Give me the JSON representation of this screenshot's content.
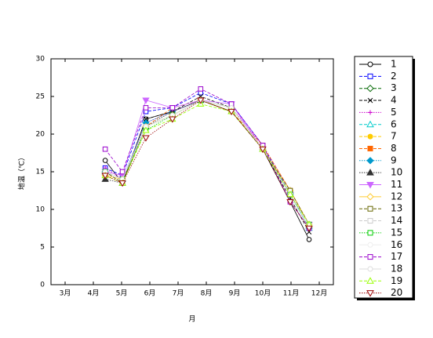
{
  "chart_data": {
    "type": "line",
    "x_label": "月",
    "y_label": "地温（℃）",
    "xlim": [
      3,
      13
    ],
    "xticks": [
      {
        "value": 3.5,
        "label": "3月"
      },
      {
        "value": 4.5,
        "label": "4月"
      },
      {
        "value": 5.5,
        "label": "5月"
      },
      {
        "value": 6.5,
        "label": "6月"
      },
      {
        "value": 7.5,
        "label": "7月"
      },
      {
        "value": 8.5,
        "label": "8月"
      },
      {
        "value": 9.5,
        "label": "9月"
      },
      {
        "value": 10.5,
        "label": "10月"
      },
      {
        "value": 11.5,
        "label": "11月"
      },
      {
        "value": 12.5,
        "label": "12月"
      }
    ],
    "ylim": [
      0,
      30
    ],
    "yticks": [
      0,
      5,
      10,
      15,
      20,
      25,
      30
    ],
    "x": [
      4.92,
      5.53,
      6.36,
      7.3,
      8.3,
      9.39,
      10.5,
      11.47,
      12.14
    ],
    "series": [
      {
        "name": "1",
        "color": "#000000",
        "marker": "o",
        "filled": false,
        "dash": "solid",
        "values": [
          16.5,
          13.5,
          22,
          23,
          24.5,
          23,
          18,
          11,
          6
        ]
      },
      {
        "name": "2",
        "color": "#0000ff",
        "marker": "s",
        "filled": false,
        "dash": "dashed",
        "values": [
          15.5,
          14.5,
          23,
          23.5,
          25.5,
          24,
          18.5,
          12,
          8
        ]
      },
      {
        "name": "3",
        "color": "#006600",
        "marker": "d",
        "filled": false,
        "dash": "dashed",
        "values": [
          15,
          14,
          21,
          22.5,
          24.5,
          23.5,
          18,
          12,
          7.5
        ]
      },
      {
        "name": "4",
        "color": "#000000",
        "marker": "x",
        "filled": false,
        "dash": "dashed",
        "values": [
          15,
          13.5,
          22,
          23,
          25,
          23.5,
          18,
          11.5,
          7
        ]
      },
      {
        "name": "5",
        "color": "#cc00cc",
        "marker": "+",
        "filled": false,
        "dash": "dotted",
        "values": [
          15.5,
          14,
          21.5,
          23,
          24.5,
          23.5,
          18.5,
          12.5,
          8
        ]
      },
      {
        "name": "6",
        "color": "#00cccc",
        "marker": "^",
        "filled": false,
        "dash": "dashed",
        "values": [
          15,
          14,
          21,
          22.5,
          24.5,
          23.5,
          18,
          12,
          7.5
        ]
      },
      {
        "name": "7",
        "color": "#ffcc00",
        "marker": "o",
        "filled": true,
        "dash": "dashed",
        "values": [
          14.5,
          13.5,
          21,
          22.5,
          24.5,
          23,
          18,
          12.5,
          8
        ]
      },
      {
        "name": "8",
        "color": "#ff6600",
        "marker": "s",
        "filled": true,
        "dash": "dashed",
        "values": [
          15,
          14,
          21,
          23.5,
          24.5,
          23,
          18.5,
          12.5,
          8
        ]
      },
      {
        "name": "9",
        "color": "#0099cc",
        "marker": "d",
        "filled": true,
        "dash": "dotted",
        "values": [
          15,
          14,
          21.5,
          23,
          24.5,
          23.5,
          18,
          12,
          7.5
        ]
      },
      {
        "name": "10",
        "color": "#333333",
        "marker": "^",
        "filled": true,
        "dash": "dotted",
        "values": [
          14,
          13.5,
          21,
          23,
          24.5,
          23,
          18,
          12.5,
          8
        ]
      },
      {
        "name": "11",
        "color": "#cc66ff",
        "marker": "v",
        "filled": true,
        "dash": "solid",
        "values": [
          15,
          14.5,
          24.5,
          23.5,
          24.5,
          24,
          18,
          12,
          8
        ]
      },
      {
        "name": "12",
        "color": "#ffcc33",
        "marker": "d",
        "filled": false,
        "dash": "solid",
        "values": [
          14.5,
          14,
          21,
          22.5,
          24.5,
          23.5,
          18,
          12.5,
          8
        ]
      },
      {
        "name": "13",
        "color": "#666600",
        "marker": "s",
        "filled": false,
        "dash": "dashed",
        "values": [
          15,
          13.5,
          21,
          22.5,
          24.5,
          23,
          18,
          12.5,
          8
        ]
      },
      {
        "name": "14",
        "color": "#cccccc",
        "marker": "s",
        "filled": false,
        "dash": "dashed",
        "values": [
          15,
          14,
          21,
          22.5,
          24.5,
          23.5,
          18,
          12,
          7.5
        ]
      },
      {
        "name": "15",
        "color": "#00cc00",
        "marker": "s",
        "filled": false,
        "dash": "dotted",
        "values": [
          15,
          14,
          20.5,
          22.5,
          24.5,
          23.5,
          18,
          12,
          8
        ]
      },
      {
        "name": "16",
        "color": "#eeeeee",
        "marker": "o",
        "filled": false,
        "dash": "solid",
        "values": [
          15,
          14,
          21,
          22.5,
          24.5,
          23.5,
          18,
          12,
          8
        ]
      },
      {
        "name": "17",
        "color": "#9900cc",
        "marker": "s",
        "filled": false,
        "dash": "dashed",
        "values": [
          18,
          15,
          23.5,
          23.5,
          26,
          24,
          18.5,
          11,
          7.5
        ]
      },
      {
        "name": "18",
        "color": "#dddddd",
        "marker": "o",
        "filled": false,
        "dash": "solid",
        "values": [
          15,
          14,
          21,
          22.5,
          24.5,
          23.5,
          18,
          12,
          8
        ]
      },
      {
        "name": "19",
        "color": "#99ff00",
        "marker": "^",
        "filled": false,
        "dash": "dashed",
        "values": [
          14.5,
          13.5,
          20.5,
          22,
          24,
          23,
          18,
          12,
          8
        ]
      },
      {
        "name": "20",
        "color": "#990000",
        "marker": "v",
        "filled": false,
        "dash": "dotted",
        "values": [
          14.5,
          13.5,
          19.5,
          22,
          24.5,
          23,
          18,
          11,
          7.5
        ]
      }
    ]
  }
}
